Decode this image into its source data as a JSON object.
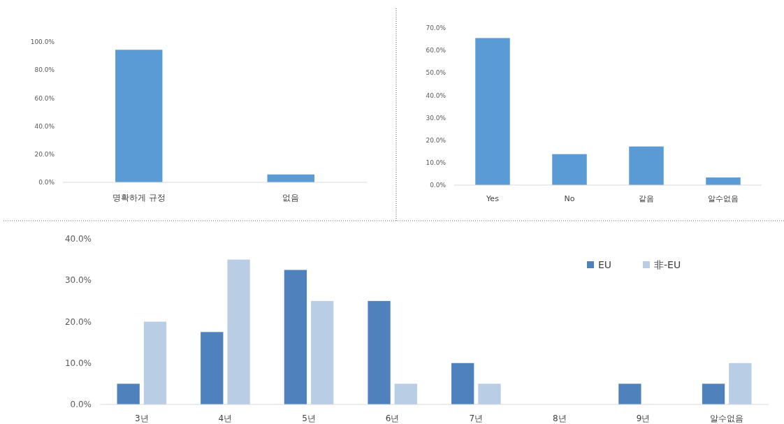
{
  "chart_data": [
    {
      "type": "bar",
      "categories": [
        "명확하게 규정",
        "없음"
      ],
      "values": [
        94.4,
        5.6
      ],
      "color": "#5b9bd5",
      "ylim": [
        0,
        100
      ],
      "yticks": [
        {
          "value": 0,
          "label": "0.0%"
        },
        {
          "value": 20,
          "label": "20.0%"
        },
        {
          "value": 40,
          "label": "40.0%"
        },
        {
          "value": 60,
          "label": "60.0%"
        },
        {
          "value": 80,
          "label": "80.0%"
        },
        {
          "value": 100,
          "label": "100.0%"
        }
      ]
    },
    {
      "type": "bar",
      "categories": [
        "Yes",
        "No",
        "같음",
        "알수없음"
      ],
      "values": [
        65.5,
        13.8,
        17.2,
        3.4
      ],
      "color": "#5b9bd5",
      "ylim": [
        0,
        70
      ],
      "yticks": [
        {
          "value": 0,
          "label": "0.0%"
        },
        {
          "value": 10,
          "label": "10.0%"
        },
        {
          "value": 20,
          "label": "20.0%"
        },
        {
          "value": 30,
          "label": "30.0%"
        },
        {
          "value": 40,
          "label": "40.0%"
        },
        {
          "value": 50,
          "label": "50.0%"
        },
        {
          "value": 60,
          "label": "60.0%"
        },
        {
          "value": 70,
          "label": "70.0%"
        }
      ]
    },
    {
      "type": "bar",
      "categories": [
        "3년",
        "4년",
        "5년",
        "6년",
        "7년",
        "8년",
        "9년",
        "알수없음"
      ],
      "series": [
        {
          "name": "EU",
          "color": "#4f81bd",
          "values": [
            5,
            17.5,
            32.5,
            25,
            10,
            0,
            5,
            5
          ]
        },
        {
          "name": "非-EU",
          "color": "#b9cde5",
          "values": [
            20,
            35,
            25,
            5,
            5,
            0,
            0,
            10
          ]
        }
      ],
      "ylim": [
        0,
        40
      ],
      "yticks": [
        {
          "value": 0,
          "label": "0.0%"
        },
        {
          "value": 10,
          "label": "10.0%"
        },
        {
          "value": 20,
          "label": "20.0%"
        },
        {
          "value": 30,
          "label": "30.0%"
        },
        {
          "value": 40,
          "label": "40.0%"
        }
      ],
      "legend": "top right"
    }
  ]
}
